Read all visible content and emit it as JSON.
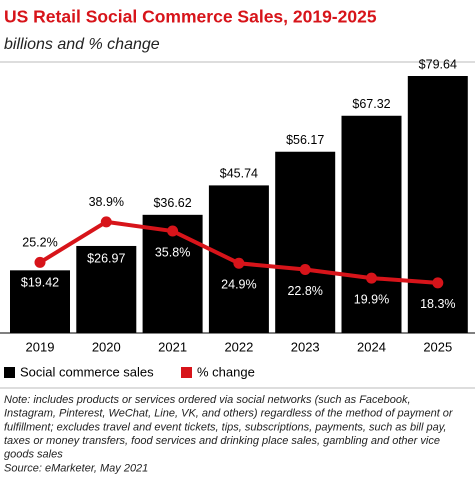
{
  "chart_data": {
    "type": "bar_line",
    "title": "US Retail Social Commerce Sales, 2019-2025",
    "subtitle": "billions and % change",
    "categories": [
      "2019",
      "2020",
      "2021",
      "2022",
      "2023",
      "2024",
      "2025"
    ],
    "series": [
      {
        "name": "Social commerce sales",
        "color": "#000000",
        "type": "bar",
        "values": [
          19.42,
          26.97,
          36.62,
          45.74,
          56.17,
          67.32,
          79.64
        ],
        "value_labels": [
          "$19.42",
          "$26.97",
          "$36.62",
          "$45.74",
          "$56.17",
          "$67.32",
          "$79.64"
        ]
      },
      {
        "name": "% change",
        "color": "#d7141a",
        "type": "line",
        "values": [
          25.2,
          38.9,
          35.8,
          24.9,
          22.8,
          19.9,
          18.3
        ],
        "value_labels": [
          "25.2%",
          "38.9%",
          "35.8%",
          "24.9%",
          "22.8%",
          "19.9%",
          "18.3%"
        ]
      }
    ],
    "note_lines": [
      "Note: includes products or services ordered via social networks (such as Facebook,",
      "Instagram, Pinterest, WeChat, Line, VK, and others) regardless of the method of payment or",
      "fulfillment; excludes travel and event tickets, tips, subscriptions, payments, such as bill pay,",
      "taxes or money transfers, food services and drinking place sales, gambling and other vice",
      "goods sales"
    ],
    "source": "Source: eMarketer, May 2021"
  }
}
